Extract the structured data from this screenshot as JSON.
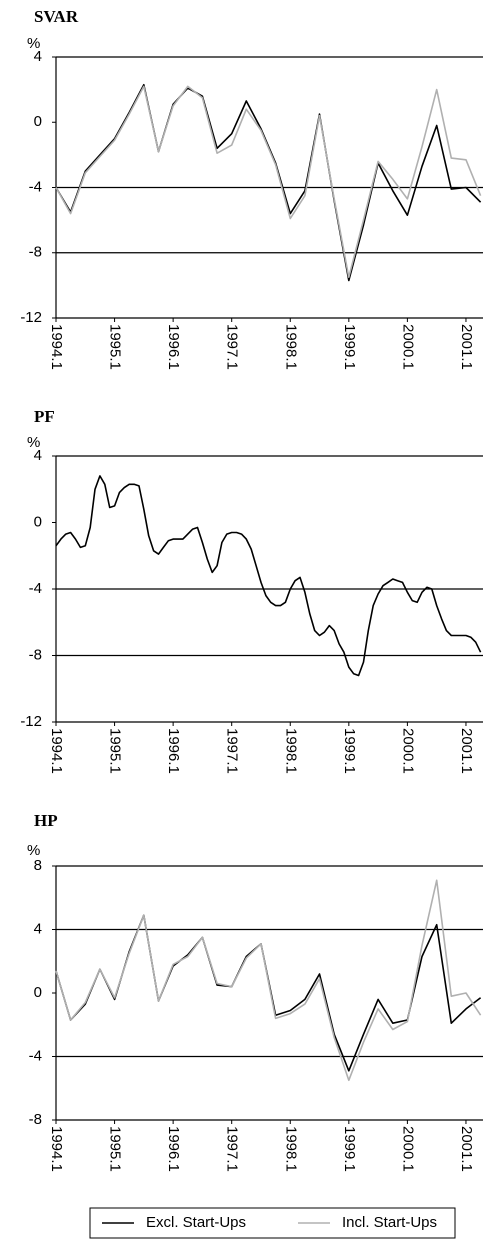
{
  "chart_data": [
    {
      "type": "line",
      "title": "SVAR",
      "y_label": "%",
      "categories": [
        "1994.1",
        null,
        null,
        null,
        "1995.1",
        null,
        null,
        null,
        "1996.1",
        null,
        null,
        null,
        "1997.1",
        null,
        null,
        null,
        "1998.1",
        null,
        null,
        null,
        "1999.1",
        null,
        null,
        null,
        "2000.1",
        null,
        null,
        null,
        "2001.1",
        null
      ],
      "series": [
        {
          "color": "#000000",
          "values": [
            -4.0,
            -5.5,
            -3.0,
            -2.0,
            -1.0,
            0.6,
            2.3,
            -1.8,
            1.1,
            2.1,
            1.6,
            -1.6,
            -0.7,
            1.3,
            -0.4,
            -2.5,
            -5.6,
            -4.2,
            0.5,
            -4.8,
            -9.7,
            -6.3,
            -2.5,
            -4.2,
            -5.7,
            -2.7,
            -0.2,
            -4.1,
            -4.0,
            -4.9
          ]
        },
        {
          "color": "#b0b0b0",
          "values": [
            -4.0,
            -5.6,
            -3.1,
            -2.1,
            -1.1,
            0.5,
            2.2,
            -1.8,
            1.0,
            2.2,
            1.5,
            -1.9,
            -1.4,
            0.8,
            -0.5,
            -2.6,
            -5.9,
            -4.5,
            0.4,
            -4.7,
            -9.5,
            -6.0,
            -2.4,
            -3.5,
            -4.7,
            -1.5,
            2.0,
            -2.2,
            -2.3,
            -4.5
          ]
        }
      ],
      "ylim": [
        -12,
        4
      ],
      "yticks": [
        -12,
        -8,
        -4,
        0,
        4
      ],
      "grid_lines": [
        -8,
        -4
      ]
    },
    {
      "type": "line",
      "title": "PF",
      "y_label": "%",
      "categories": [
        "1994.1",
        null,
        null,
        null,
        null,
        null,
        null,
        null,
        null,
        null,
        null,
        null,
        "1995.1",
        null,
        null,
        null,
        null,
        null,
        null,
        null,
        null,
        null,
        null,
        null,
        "1996.1",
        null,
        null,
        null,
        null,
        null,
        null,
        null,
        null,
        null,
        null,
        null,
        "1997.1",
        null,
        null,
        null,
        null,
        null,
        null,
        null,
        null,
        null,
        null,
        null,
        "1998.1",
        null,
        null,
        null,
        null,
        null,
        null,
        null,
        null,
        null,
        null,
        null,
        "1999.1",
        null,
        null,
        null,
        null,
        null,
        null,
        null,
        null,
        null,
        null,
        null,
        "2000.1",
        null,
        null,
        null,
        null,
        null,
        null,
        null,
        null,
        null,
        null,
        null,
        "2001.1",
        null,
        null,
        null
      ],
      "series": [
        {
          "color": "#000000",
          "values": [
            -1.4,
            -1.0,
            -0.7,
            -0.6,
            -1.0,
            -1.5,
            -1.4,
            -0.3,
            2.0,
            2.8,
            2.3,
            0.9,
            1.0,
            1.8,
            2.1,
            2.3,
            2.3,
            2.2,
            0.8,
            -0.8,
            -1.7,
            -1.9,
            -1.5,
            -1.1,
            -1.0,
            -1.0,
            -1.0,
            -0.7,
            -0.4,
            -0.3,
            -1.2,
            -2.2,
            -3.0,
            -2.6,
            -1.2,
            -0.7,
            -0.6,
            -0.6,
            -0.7,
            -1.0,
            -1.6,
            -2.6,
            -3.6,
            -4.4,
            -4.8,
            -5.0,
            -5.0,
            -4.8,
            -4.0,
            -3.5,
            -3.3,
            -4.2,
            -5.5,
            -6.5,
            -6.8,
            -6.6,
            -6.2,
            -6.5,
            -7.3,
            -7.8,
            -8.7,
            -9.1,
            -9.2,
            -8.4,
            -6.5,
            -5.0,
            -4.3,
            -3.8,
            -3.6,
            -3.4,
            -3.5,
            -3.6,
            -4.2,
            -4.7,
            -4.8,
            -4.2,
            -3.9,
            -4.0,
            -5.0,
            -5.8,
            -6.5,
            -6.8,
            -6.8,
            -6.8,
            -6.8,
            -6.9,
            -7.2,
            -7.8
          ]
        }
      ],
      "ylim": [
        -12,
        4
      ],
      "yticks": [
        -12,
        -8,
        -4,
        0,
        4
      ],
      "grid_lines": [
        -8,
        -4
      ]
    },
    {
      "type": "line",
      "title": "HP",
      "y_label": "%",
      "categories": [
        "1994.1",
        null,
        null,
        null,
        "1995.1",
        null,
        null,
        null,
        "1996.1",
        null,
        null,
        null,
        "1997.1",
        null,
        null,
        null,
        "1998.1",
        null,
        null,
        null,
        "1999.1",
        null,
        null,
        null,
        "2000.1",
        null,
        null,
        null,
        "2001.1",
        null
      ],
      "series": [
        {
          "name": "Excl. Start-Ups",
          "color": "#000000",
          "values": [
            1.4,
            -1.7,
            -0.7,
            1.5,
            -0.4,
            2.6,
            4.9,
            -0.5,
            1.7,
            2.4,
            3.5,
            0.5,
            0.4,
            2.3,
            3.1,
            -1.4,
            -1.1,
            -0.4,
            1.2,
            -2.6,
            -4.9,
            -2.6,
            -0.4,
            -1.9,
            -1.7,
            2.3,
            4.3,
            -1.9,
            -1.0,
            -0.3
          ]
        },
        {
          "name": "Incl. Start-Ups",
          "color": "#b0b0b0",
          "values": [
            1.4,
            -1.7,
            -0.6,
            1.5,
            -0.3,
            2.5,
            4.9,
            -0.5,
            1.8,
            2.3,
            3.5,
            0.6,
            0.4,
            2.2,
            3.1,
            -1.6,
            -1.3,
            -0.7,
            0.9,
            -2.8,
            -5.5,
            -3.1,
            -1.0,
            -2.3,
            -1.8,
            3.0,
            7.1,
            -0.2,
            0.0,
            -1.4
          ]
        }
      ],
      "ylim": [
        -8,
        8
      ],
      "yticks": [
        -8,
        -4,
        0,
        4,
        8
      ],
      "grid_lines": [
        -4,
        4
      ],
      "legend": "bottom"
    }
  ]
}
